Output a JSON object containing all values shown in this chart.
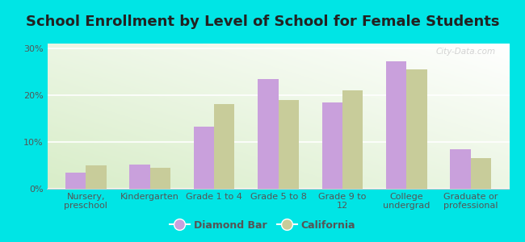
{
  "title": "School Enrollment by Level of School for Female Students",
  "categories": [
    "Nursery,\npreschool",
    "Kindergarten",
    "Grade 1 to 4",
    "Grade 5 to 8",
    "Grade 9 to\n12",
    "College\nundergrad",
    "Graduate or\nprofessional"
  ],
  "diamond_bar": [
    3.5,
    5.2,
    13.2,
    23.5,
    18.5,
    27.2,
    8.5
  ],
  "california": [
    5.0,
    4.5,
    18.0,
    19.0,
    21.0,
    25.5,
    6.5
  ],
  "bar_color_db": "#c9a0dc",
  "bar_color_ca": "#c8cc9a",
  "background_outer": "#00e5e5",
  "background_inner_top": "#ffffff",
  "background_inner_bottom": "#d8edc8",
  "ylim": [
    0,
    31
  ],
  "yticks": [
    0,
    10,
    20,
    30
  ],
  "ytick_labels": [
    "0%",
    "10%",
    "20%",
    "30%"
  ],
  "legend_label_db": "Diamond Bar",
  "legend_label_ca": "California",
  "title_fontsize": 13,
  "tick_fontsize": 8,
  "legend_fontsize": 9,
  "watermark": "City-Data.com",
  "bar_width": 0.32
}
